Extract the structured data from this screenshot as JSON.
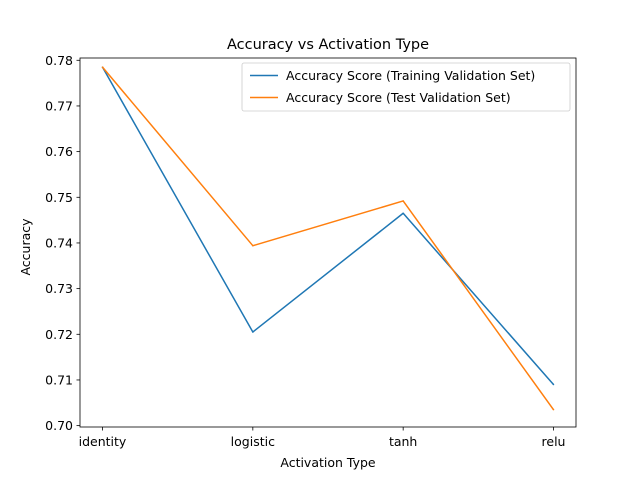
{
  "chart_data": {
    "type": "line",
    "title": "Accuracy vs Activation Type",
    "xlabel": "Activation Type",
    "ylabel": "Accuracy",
    "categories": [
      "identity",
      "logistic",
      "tanh",
      "relu"
    ],
    "ylim": [
      0.6997,
      0.7805
    ],
    "yticks": [
      0.7,
      0.71,
      0.72,
      0.73,
      0.74,
      0.75,
      0.76,
      0.77,
      0.78
    ],
    "ytick_labels": [
      "0.70",
      "0.71",
      "0.72",
      "0.73",
      "0.74",
      "0.75",
      "0.76",
      "0.77",
      "0.78"
    ],
    "grid": false,
    "legend_position": "upper right",
    "series": [
      {
        "name": "Accuracy Score (Training Validation Set)",
        "color": "#1f77b4",
        "values": [
          0.7785,
          0.7205,
          0.7465,
          0.709
        ]
      },
      {
        "name": "Accuracy Score (Test Validation Set)",
        "color": "#ff7f0e",
        "values": [
          0.7785,
          0.7394,
          0.7492,
          0.7035
        ]
      }
    ]
  }
}
